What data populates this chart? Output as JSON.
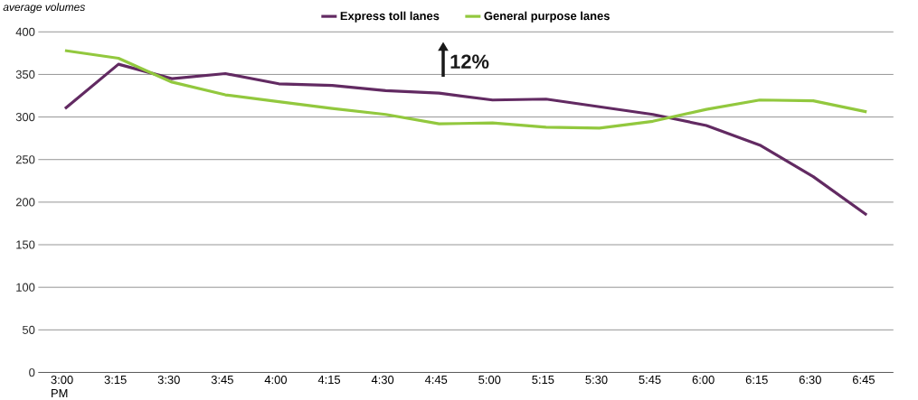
{
  "chart_data": {
    "type": "line",
    "ylabel": "average volumes",
    "categories": [
      "3:00 PM",
      "3:15",
      "3:30",
      "3:45",
      "4:00",
      "4:15",
      "4:30",
      "4:45",
      "5:00",
      "5:15",
      "5:30",
      "5:45",
      "6:00",
      "6:15",
      "6:30",
      "6:45"
    ],
    "series": [
      {
        "name": "Express toll lanes",
        "color": "#622a62",
        "values": [
          310,
          362,
          345,
          351,
          339,
          337,
          331,
          328,
          320,
          321,
          312,
          303,
          290,
          267,
          230,
          185
        ]
      },
      {
        "name": "General purpose lanes",
        "color": "#92c83e",
        "values": [
          378,
          369,
          341,
          326,
          318,
          310,
          303,
          292,
          293,
          288,
          287,
          295,
          309,
          320,
          319,
          306
        ]
      }
    ],
    "ylim": [
      0,
      400
    ],
    "yticks": [
      0,
      50,
      100,
      150,
      200,
      250,
      300,
      350,
      400
    ],
    "grid": "y",
    "legend": "top",
    "marker": "none",
    "line_style": "solid",
    "annotations": [
      "**12%**"
    ]
  }
}
